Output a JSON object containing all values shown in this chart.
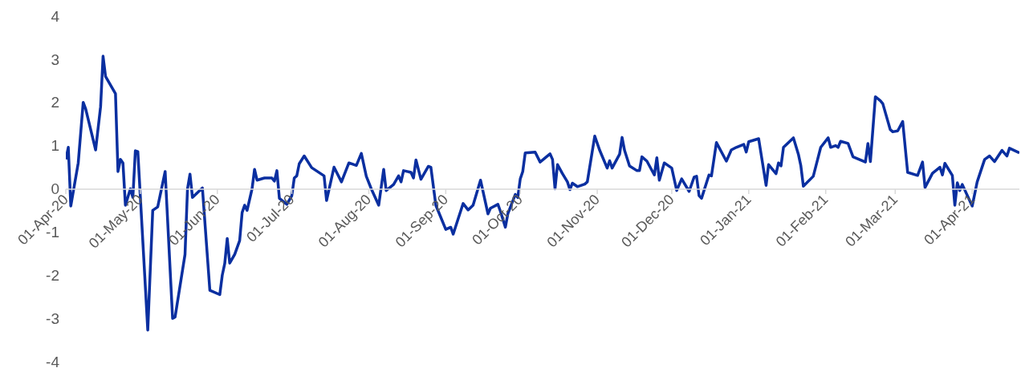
{
  "chart_data": {
    "type": "line",
    "x": [
      "2020-04-01",
      "2020-04-02",
      "2020-04-03",
      "2020-04-06",
      "2020-04-08",
      "2020-04-09",
      "2020-04-13",
      "2020-04-15",
      "2020-04-16",
      "2020-04-17",
      "2020-04-21",
      "2020-04-22",
      "2020-04-23",
      "2020-04-24",
      "2020-04-25",
      "2020-04-27",
      "2020-04-28",
      "2020-04-29",
      "2020-04-30",
      "2020-05-04",
      "2020-05-06",
      "2020-05-08",
      "2020-05-11",
      "2020-05-14",
      "2020-05-15",
      "2020-05-19",
      "2020-05-20",
      "2020-05-21",
      "2020-05-22",
      "2020-05-26",
      "2020-05-29",
      "2020-06-02",
      "2020-06-03",
      "2020-06-04",
      "2020-06-05",
      "2020-06-06",
      "2020-06-08",
      "2020-06-10",
      "2020-06-11",
      "2020-06-12",
      "2020-06-13",
      "2020-06-15",
      "2020-06-16",
      "2020-06-17",
      "2020-06-20",
      "2020-06-23",
      "2020-06-24",
      "2020-06-25",
      "2020-06-26",
      "2020-06-29",
      "2020-07-01",
      "2020-07-02",
      "2020-07-03",
      "2020-07-04",
      "2020-07-06",
      "2020-07-09",
      "2020-07-14",
      "2020-07-15",
      "2020-07-18",
      "2020-07-21",
      "2020-07-24",
      "2020-07-27",
      "2020-07-29",
      "2020-07-31",
      "2020-08-02",
      "2020-08-05",
      "2020-08-07",
      "2020-08-08",
      "2020-08-11",
      "2020-08-13",
      "2020-08-14",
      "2020-08-15",
      "2020-08-18",
      "2020-08-19",
      "2020-08-20",
      "2020-08-22",
      "2020-08-25",
      "2020-08-26",
      "2020-08-28",
      "2020-09-01",
      "2020-09-03",
      "2020-09-04",
      "2020-09-08",
      "2020-09-10",
      "2020-09-12",
      "2020-09-15",
      "2020-09-18",
      "2020-09-19",
      "2020-09-22",
      "2020-09-23",
      "2020-09-25",
      "2020-09-26",
      "2020-09-29",
      "2020-09-30",
      "2020-10-01",
      "2020-10-02",
      "2020-10-03",
      "2020-10-07",
      "2020-10-09",
      "2020-10-13",
      "2020-10-14",
      "2020-10-15",
      "2020-10-16",
      "2020-10-18",
      "2020-10-20",
      "2020-10-21",
      "2020-10-22",
      "2020-10-24",
      "2020-10-27",
      "2020-10-28",
      "2020-10-31",
      "2020-11-02",
      "2020-11-05",
      "2020-11-06",
      "2020-11-07",
      "2020-11-10",
      "2020-11-11",
      "2020-11-12",
      "2020-11-14",
      "2020-11-17",
      "2020-11-18",
      "2020-11-19",
      "2020-11-21",
      "2020-11-24",
      "2020-11-25",
      "2020-11-26",
      "2020-11-28",
      "2020-12-01",
      "2020-12-03",
      "2020-12-05",
      "2020-12-08",
      "2020-12-10",
      "2020-12-11",
      "2020-12-12",
      "2020-12-13",
      "2020-12-16",
      "2020-12-17",
      "2020-12-19",
      "2020-12-23",
      "2020-12-25",
      "2020-12-27",
      "2020-12-30",
      "2020-12-31",
      "2021-01-01",
      "2021-01-05",
      "2021-01-08",
      "2021-01-09",
      "2021-01-12",
      "2021-01-13",
      "2021-01-14",
      "2021-01-15",
      "2021-01-19",
      "2021-01-21",
      "2021-01-22",
      "2021-01-23",
      "2021-01-27",
      "2021-01-30",
      "2021-02-02",
      "2021-02-03",
      "2021-02-05",
      "2021-02-06",
      "2021-02-07",
      "2021-02-10",
      "2021-02-12",
      "2021-02-17",
      "2021-02-18",
      "2021-02-19",
      "2021-02-21",
      "2021-02-23",
      "2021-02-24",
      "2021-02-27",
      "2021-02-28",
      "2021-03-02",
      "2021-03-04",
      "2021-03-06",
      "2021-03-10",
      "2021-03-12",
      "2021-03-13",
      "2021-03-16",
      "2021-03-19",
      "2021-03-20",
      "2021-03-21",
      "2021-03-24",
      "2021-03-25",
      "2021-03-26",
      "2021-03-27",
      "2021-03-28",
      "2021-04-01",
      "2021-04-03",
      "2021-04-06",
      "2021-04-08",
      "2021-04-10",
      "2021-04-13",
      "2021-04-15",
      "2021-04-16",
      "2021-04-20"
    ],
    "series": [
      {
        "color": "#0a2fa0",
        "values": [
          0.68,
          0.96,
          -0.4,
          0.6,
          2.0,
          1.85,
          0.9,
          1.9,
          3.07,
          2.6,
          2.2,
          0.4,
          0.68,
          0.6,
          -0.38,
          0.0,
          -0.2,
          0.88,
          0.86,
          -3.27,
          -0.5,
          -0.42,
          0.4,
          -3.0,
          -2.97,
          -1.52,
          0.0,
          0.34,
          -0.2,
          0.02,
          -2.35,
          -2.45,
          -2.0,
          -1.73,
          -1.15,
          -1.72,
          -1.52,
          -1.2,
          -0.55,
          -0.38,
          -0.5,
          0.0,
          0.45,
          0.2,
          0.25,
          0.25,
          0.18,
          0.42,
          -0.22,
          -0.36,
          -0.16,
          0.25,
          0.3,
          0.58,
          0.76,
          0.49,
          0.3,
          -0.27,
          0.5,
          0.16,
          0.6,
          0.54,
          0.82,
          0.29,
          0.0,
          -0.38,
          0.45,
          -0.04,
          0.1,
          0.3,
          0.16,
          0.42,
          0.38,
          0.25,
          0.67,
          0.22,
          0.52,
          0.5,
          -0.38,
          -0.94,
          -0.89,
          -1.05,
          -0.34,
          -0.49,
          -0.38,
          0.2,
          -0.58,
          -0.45,
          -0.36,
          -0.52,
          -0.89,
          -0.58,
          -0.13,
          -0.2,
          0.23,
          0.4,
          0.83,
          0.85,
          0.62,
          0.81,
          0.68,
          0.0,
          0.56,
          0.35,
          0.16,
          -0.02,
          0.13,
          0.05,
          0.11,
          0.16,
          1.22,
          0.89,
          0.48,
          0.65,
          0.48,
          0.8,
          1.19,
          0.89,
          0.53,
          0.42,
          0.42,
          0.74,
          0.64,
          0.32,
          0.72,
          0.2,
          0.6,
          0.48,
          -0.04,
          0.23,
          -0.06,
          0.27,
          0.29,
          -0.16,
          -0.22,
          0.32,
          0.3,
          1.07,
          0.64,
          0.9,
          0.96,
          1.03,
          0.85,
          1.09,
          1.16,
          0.08,
          0.56,
          0.35,
          0.6,
          0.53,
          0.96,
          1.18,
          0.8,
          0.53,
          0.06,
          0.29,
          0.96,
          1.18,
          0.96,
          1.0,
          0.96,
          1.1,
          1.05,
          0.74,
          0.62,
          1.05,
          0.63,
          2.13,
          2.04,
          1.97,
          1.37,
          1.32,
          1.34,
          1.56,
          0.38,
          0.31,
          0.62,
          0.03,
          0.36,
          0.5,
          0.32,
          0.59,
          0.31,
          -0.38,
          0.14,
          -0.04,
          0.1,
          -0.4,
          0.16,
          0.68,
          0.76,
          0.63,
          0.89,
          0.76,
          0.94,
          0.83
        ]
      }
    ],
    "xlim": [
      "2020-04-01",
      "2021-04-20"
    ],
    "xticks": [
      {
        "value": "2020-04-01",
        "label": "01-Apr-20"
      },
      {
        "value": "2020-05-01",
        "label": "01-May-20"
      },
      {
        "value": "2020-06-01",
        "label": "01-Jun-20"
      },
      {
        "value": "2020-07-01",
        "label": "01-Jul-20"
      },
      {
        "value": "2020-08-01",
        "label": "01-Aug-20"
      },
      {
        "value": "2020-09-01",
        "label": "01-Sep-20"
      },
      {
        "value": "2020-10-01",
        "label": "01-Oct-20"
      },
      {
        "value": "2020-11-01",
        "label": "01-Nov-20"
      },
      {
        "value": "2020-12-01",
        "label": "01-Dec-20"
      },
      {
        "value": "2021-01-01",
        "label": "01-Jan-21"
      },
      {
        "value": "2021-02-01",
        "label": "01-Feb-21"
      },
      {
        "value": "2021-03-01",
        "label": "01-Mar-21"
      },
      {
        "value": "2021-04-01",
        "label": "01-Apr-21"
      }
    ],
    "ylim": [
      -4,
      4
    ],
    "yticks": [
      -4,
      -3,
      -2,
      -1,
      0,
      1,
      2,
      3,
      4
    ]
  }
}
